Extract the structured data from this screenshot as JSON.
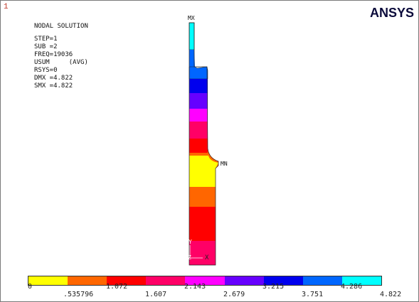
{
  "window_number": "1",
  "logo_text": "ANSYS",
  "info": {
    "title": "NODAL SOLUTION",
    "lines": [
      "STEP=1",
      "SUB =2",
      "FREQ=19036",
      "USUM     (AVG)",
      "RSYS=0",
      "DMX =4.822",
      "SMX =4.822"
    ]
  },
  "markers": {
    "max": "MX",
    "min": "MN",
    "axis_y": "Y",
    "axis_z": "Z",
    "axis_x": "X"
  },
  "legend": {
    "colors": [
      "#ffff00",
      "#ff6600",
      "#ff0000",
      "#ff0066",
      "#ff00ff",
      "#6600ff",
      "#0000ee",
      "#0066ff",
      "#00ffff"
    ],
    "top_labels": [
      "0",
      "1.072",
      "2.143",
      "3.215",
      "4.286"
    ],
    "bottom_labels": [
      ".535796",
      "1.607",
      "2.679",
      "3.751",
      "4.822"
    ]
  }
}
